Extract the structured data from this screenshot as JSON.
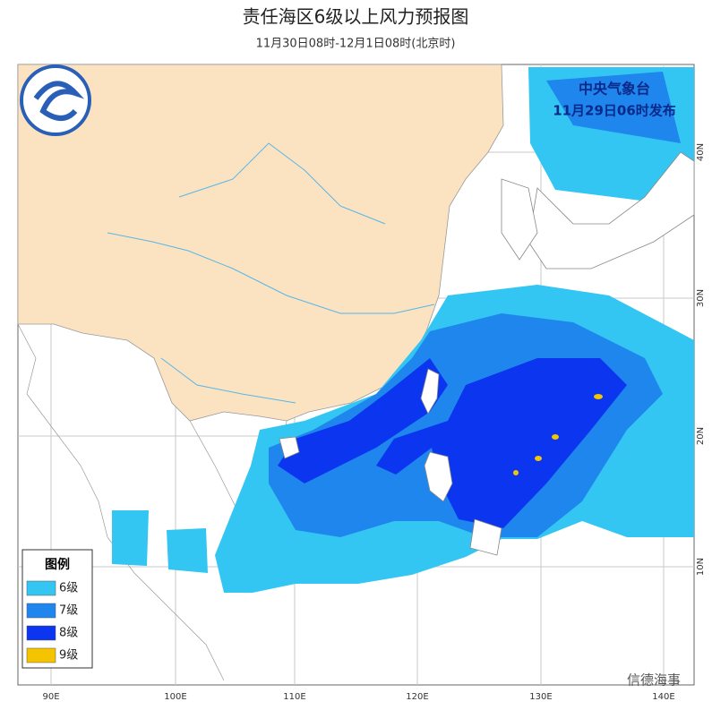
{
  "header": {
    "title": "责任海区6级以上风力预报图",
    "subtitle": "11月30日08时-12月1日08时(北京时)"
  },
  "issuer": {
    "agency": "中央气象台",
    "issued": "11月29日06时发布"
  },
  "map": {
    "lon_labels": [
      "90E",
      "100E",
      "110E",
      "120E",
      "130E",
      "140E"
    ],
    "lat_labels": [
      "40N",
      "30N",
      "20N",
      "10N"
    ]
  },
  "legend": {
    "title": "图例",
    "items": [
      {
        "label": "6级",
        "color": "#34c6f2"
      },
      {
        "label": "7级",
        "color": "#1f86ee"
      },
      {
        "label": "8级",
        "color": "#0b35ee"
      },
      {
        "label": "9级",
        "color": "#f5c400"
      }
    ]
  },
  "watermark": "信德海事"
}
